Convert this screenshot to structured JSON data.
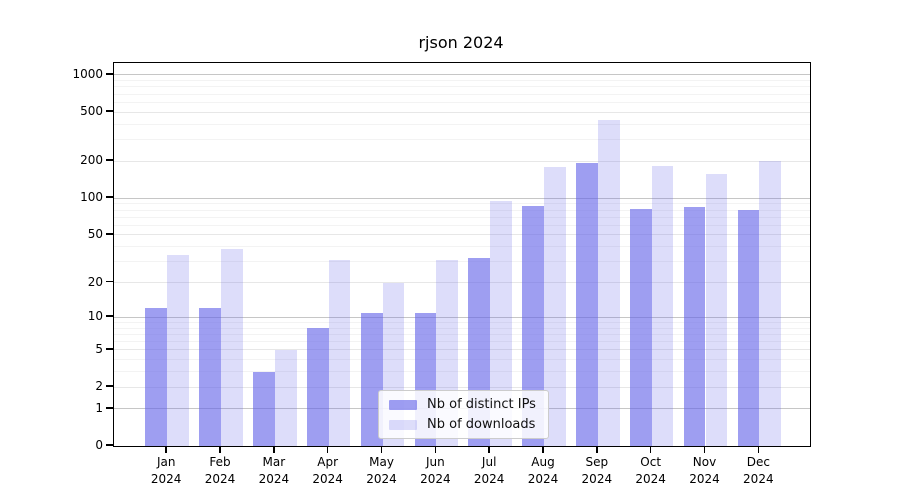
{
  "chart_data": {
    "type": "bar",
    "title": "rjson 2024",
    "categories": [
      "Jan",
      "Feb",
      "Mar",
      "Apr",
      "May",
      "Jun",
      "Jul",
      "Aug",
      "Sep",
      "Oct",
      "Nov",
      "Dec"
    ],
    "x_year_suffix": "2024",
    "series": [
      {
        "name": "Nb of distinct IPs",
        "color": "rgba(99,99,232,0.62)",
        "values": [
          12,
          12,
          3,
          8,
          11,
          11,
          32,
          87,
          195,
          82,
          85,
          80
        ]
      },
      {
        "name": "Nb of downloads",
        "color": "rgba(99,99,232,0.22)",
        "values": [
          34,
          38,
          5,
          31,
          20,
          31,
          94,
          178,
          430,
          182,
          158,
          200
        ]
      }
    ],
    "y_axis": {
      "scale": "log1p",
      "ticks": [
        0,
        1,
        2,
        5,
        10,
        20,
        50,
        100,
        200,
        500,
        1000
      ],
      "max": 1000,
      "top_value_fraction": 0.9687
    },
    "x_axis": {
      "tick_label_lines": 2
    },
    "grid": {
      "major_values": [
        1,
        10,
        100,
        1000
      ],
      "mid_values": [
        2,
        5,
        20,
        50,
        200,
        500
      ],
      "major_color": "#c6c6c6",
      "mid_color": "#e7e7e7",
      "minor_color": "#f3f3f3"
    },
    "legend_position": "lower center",
    "background": "#ffffff"
  }
}
